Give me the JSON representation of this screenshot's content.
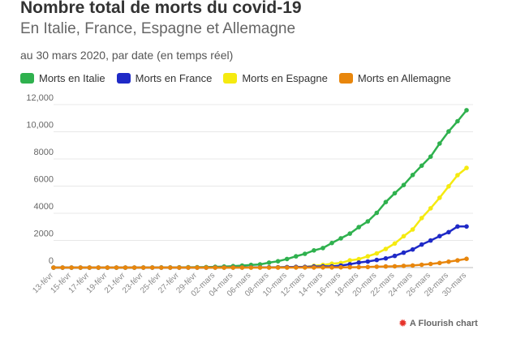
{
  "header": {
    "title": "Nombre total de morts du covid-19",
    "subtitle": "En Italie, France, Espagne et Allemagne",
    "note": "au 30 mars 2020, par date (en temps réel)"
  },
  "credit": {
    "label": "A Flourish chart",
    "icon": "flourish-logo-icon",
    "color": "#e6332a"
  },
  "chart_data": {
    "type": "line",
    "title": "Nombre total de morts du covid-19",
    "xlabel": "",
    "ylabel": "",
    "ylim": [
      0,
      12000
    ],
    "yticks": [
      0,
      2000,
      4000,
      6000,
      8000,
      10000,
      12000
    ],
    "ytick_labels": [
      "0",
      "2000",
      "4000",
      "6000",
      "8000",
      "10,000",
      "12,000"
    ],
    "grid": true,
    "legend_position": "top-left",
    "x": [
      "13-févr",
      "14-févr",
      "15-févr",
      "16-févr",
      "17-févr",
      "18-févr",
      "19-févr",
      "20-févr",
      "21-févr",
      "22-févr",
      "23-févr",
      "24-févr",
      "25-févr",
      "26-févr",
      "27-févr",
      "28-févr",
      "29-févr",
      "01-mars",
      "02-mars",
      "03-mars",
      "04-mars",
      "05-mars",
      "06-mars",
      "07-mars",
      "08-mars",
      "09-mars",
      "10-mars",
      "11-mars",
      "12-mars",
      "13-mars",
      "14-mars",
      "15-mars",
      "16-mars",
      "17-mars",
      "18-mars",
      "19-mars",
      "20-mars",
      "21-mars",
      "22-mars",
      "23-mars",
      "24-mars",
      "25-mars",
      "26-mars",
      "27-mars",
      "28-mars",
      "29-mars",
      "30-mars"
    ],
    "xtick_labels": [
      "13-févr",
      "15-févr",
      "17-févr",
      "19-févr",
      "21-févr",
      "23-févr",
      "25-févr",
      "27-févr",
      "29-févr",
      "02-mars",
      "04-mars",
      "06-mars",
      "08-mars",
      "10-mars",
      "12-mars",
      "14-mars",
      "16-mars",
      "18-mars",
      "20-mars",
      "22-mars",
      "24-mars",
      "26-mars",
      "28-mars",
      "30-mars"
    ],
    "series": [
      {
        "name": "Morts en Italie",
        "color": "#2fb14e",
        "values": [
          0,
          0,
          0,
          0,
          0,
          0,
          0,
          0,
          1,
          2,
          3,
          7,
          10,
          12,
          17,
          21,
          29,
          34,
          52,
          79,
          107,
          148,
          197,
          233,
          366,
          463,
          631,
          827,
          1016,
          1266,
          1441,
          1809,
          2158,
          2503,
          2978,
          3405,
          4032,
          4825,
          5476,
          6077,
          6820,
          7503,
          8165,
          9134,
          10023,
          10779,
          11591
        ]
      },
      {
        "name": "Morts en France",
        "color": "#1f2ac7",
        "values": [
          1,
          1,
          1,
          1,
          1,
          1,
          1,
          1,
          1,
          1,
          1,
          1,
          1,
          2,
          2,
          2,
          2,
          2,
          3,
          4,
          4,
          6,
          9,
          11,
          19,
          19,
          33,
          48,
          48,
          79,
          91,
          91,
          148,
          243,
          372,
          450,
          562,
          674,
          860,
          1100,
          1331,
          1696,
          1995,
          2314,
          2606,
          3024,
          3024
        ]
      },
      {
        "name": "Morts en Espagne",
        "color": "#f5ea10",
        "values": [
          0,
          0,
          0,
          0,
          0,
          0,
          0,
          0,
          0,
          0,
          0,
          0,
          0,
          0,
          0,
          0,
          0,
          0,
          0,
          1,
          2,
          3,
          5,
          10,
          17,
          28,
          35,
          54,
          55,
          133,
          195,
          289,
          342,
          533,
          623,
          830,
          1043,
          1375,
          1772,
          2311,
          2808,
          3647,
          4365,
          5138,
          5982,
          6803,
          7340
        ]
      },
      {
        "name": "Morts en Allemagne",
        "color": "#e8860c",
        "values": [
          0,
          0,
          0,
          0,
          0,
          0,
          0,
          0,
          0,
          0,
          0,
          0,
          0,
          0,
          0,
          0,
          0,
          0,
          0,
          0,
          0,
          0,
          0,
          0,
          0,
          2,
          2,
          3,
          3,
          7,
          9,
          11,
          17,
          24,
          28,
          44,
          67,
          84,
          94,
          123,
          157,
          206,
          267,
          342,
          433,
          533,
          645
        ]
      }
    ]
  }
}
